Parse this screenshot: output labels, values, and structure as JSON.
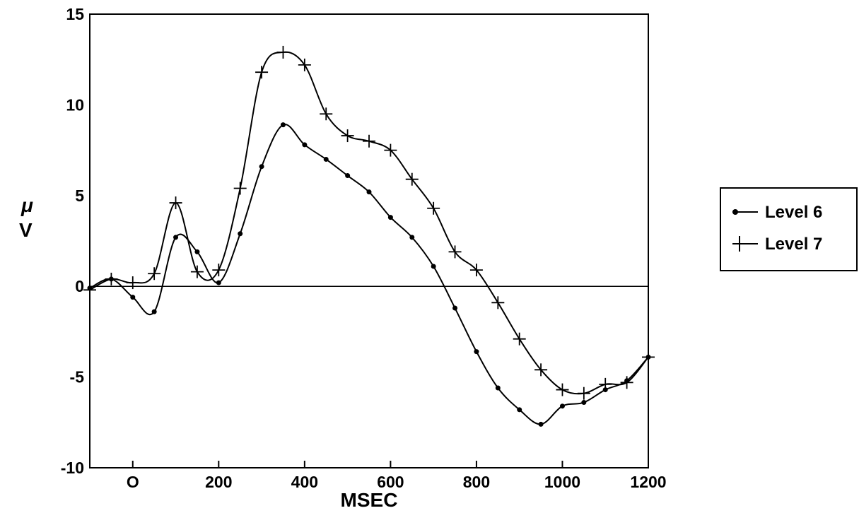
{
  "chart_data": {
    "type": "line",
    "title": "",
    "xlabel": "MSEC",
    "ylabel_symbol": "μ",
    "ylabel_unit": "V",
    "xlim": [
      -100,
      1200
    ],
    "ylim": [
      -10,
      15
    ],
    "xticks": [
      {
        "value": 0,
        "label": "O"
      },
      {
        "value": 200,
        "label": "200"
      },
      {
        "value": 400,
        "label": "400"
      },
      {
        "value": 600,
        "label": "600"
      },
      {
        "value": 800,
        "label": "800"
      },
      {
        "value": 1000,
        "label": "1000"
      },
      {
        "value": 1200,
        "label": "1200"
      }
    ],
    "yticks": [
      {
        "value": -10,
        "label": "-10"
      },
      {
        "value": -5,
        "label": "-5"
      },
      {
        "value": 0,
        "label": "0"
      },
      {
        "value": 5,
        "label": "5"
      },
      {
        "value": 10,
        "label": "10"
      },
      {
        "value": 15,
        "label": "15"
      }
    ],
    "zero_line": true,
    "grid": false,
    "legend_position": "right",
    "series": [
      {
        "name": "Level 6",
        "marker": "dot",
        "x": [
          -100,
          -50,
          0,
          50,
          100,
          150,
          200,
          250,
          300,
          350,
          400,
          450,
          500,
          550,
          600,
          650,
          700,
          750,
          800,
          850,
          900,
          950,
          1000,
          1050,
          1100,
          1150,
          1200
        ],
        "y": [
          -0.1,
          0.4,
          -0.6,
          -1.4,
          2.7,
          1.9,
          0.2,
          2.9,
          6.6,
          8.9,
          7.8,
          7.0,
          6.1,
          5.2,
          3.8,
          2.7,
          1.1,
          -1.2,
          -3.6,
          -5.6,
          -6.8,
          -7.6,
          -6.6,
          -6.4,
          -5.7,
          -5.2,
          -3.9
        ]
      },
      {
        "name": "Level 7",
        "marker": "plus",
        "x": [
          -100,
          -50,
          0,
          50,
          100,
          150,
          200,
          250,
          300,
          350,
          400,
          450,
          500,
          550,
          600,
          650,
          700,
          750,
          800,
          850,
          900,
          950,
          1000,
          1050,
          1100,
          1150,
          1200
        ],
        "y": [
          -0.2,
          0.4,
          0.2,
          0.7,
          4.6,
          0.8,
          0.9,
          5.4,
          11.8,
          12.9,
          12.2,
          9.5,
          8.3,
          8.0,
          7.5,
          5.9,
          4.3,
          1.9,
          0.9,
          -0.9,
          -2.9,
          -4.6,
          -5.7,
          -5.9,
          -5.4,
          -5.3,
          -3.9
        ]
      }
    ]
  }
}
